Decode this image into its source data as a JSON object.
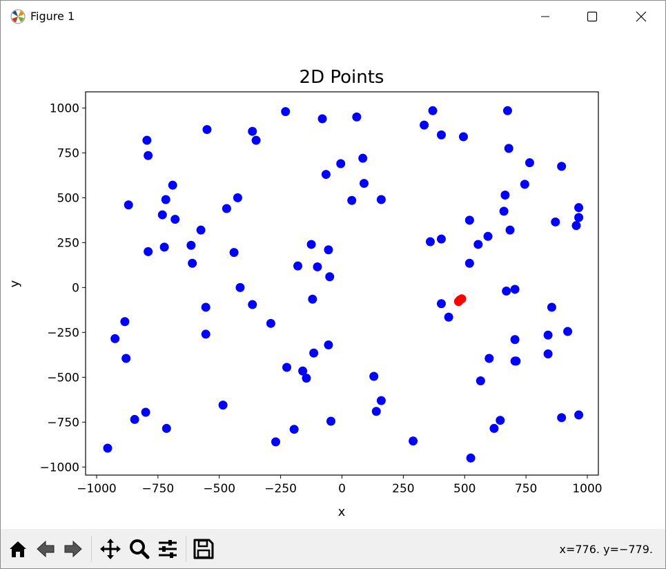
{
  "window": {
    "title": "Figure 1"
  },
  "status": {
    "coords": "x=776. y=−779."
  },
  "toolbar": {
    "items": [
      {
        "icon": "home-icon"
      },
      {
        "icon": "back-arrow-icon"
      },
      {
        "icon": "forward-arrow-icon"
      },
      {
        "icon": "pan-move-icon"
      },
      {
        "icon": "zoom-magnifier-icon"
      },
      {
        "icon": "configure-subplots-icon"
      },
      {
        "icon": "save-disk-icon"
      }
    ]
  },
  "colors": {
    "blue": "#0000ff",
    "red": "#ff0000"
  },
  "chart_data": {
    "type": "scatter",
    "title": "2D Points",
    "xlabel": "x",
    "ylabel": "y",
    "xlim": [
      -1045,
      1045
    ],
    "ylim": [
      -1045,
      1090
    ],
    "xticks": [
      -1000,
      -750,
      -500,
      -250,
      0,
      250,
      500,
      750,
      1000
    ],
    "yticks": [
      -1000,
      -750,
      -500,
      -250,
      0,
      250,
      500,
      750,
      1000
    ],
    "xtick_labels": [
      "−1000",
      "−750",
      "−500",
      "−250",
      "0",
      "250",
      "500",
      "750",
      "1000"
    ],
    "ytick_labels": [
      "−1000",
      "−750",
      "−500",
      "−250",
      "0",
      "250",
      "500",
      "750",
      "1000"
    ],
    "grid": false,
    "series": [
      {
        "color": "blue",
        "x": [
          -795,
          -790,
          -870,
          -690,
          -718,
          -732,
          -680,
          -790,
          -724,
          -575,
          -615,
          -610,
          -550,
          -470,
          -425,
          -440,
          -365,
          -350,
          -230,
          -80,
          -5,
          -65,
          -125,
          -55,
          -180,
          -100,
          -50,
          -415,
          -120,
          -365,
          -555,
          -290,
          -555,
          -225,
          -160,
          -145,
          -115,
          -55,
          -485,
          -195,
          -270,
          -45,
          -885,
          -925,
          -880,
          -800,
          -845,
          -715,
          -955,
          60,
          85,
          90,
          40,
          160,
          335,
          370,
          405,
          495,
          675,
          680,
          765,
          895,
          520,
          405,
          360,
          555,
          595,
          685,
          665,
          660,
          745,
          870,
          955,
          965,
          965,
          520,
          705,
          670,
          405,
          435,
          855,
          840,
          705,
          920,
          840,
          600,
          710,
          565,
          705,
          645,
          620,
          525,
          895,
          965,
          290,
          160,
          130,
          140
        ],
        "y": [
          820,
          735,
          460,
          570,
          490,
          405,
          380,
          200,
          225,
          320,
          235,
          135,
          880,
          440,
          500,
          195,
          870,
          820,
          980,
          940,
          690,
          630,
          240,
          210,
          120,
          115,
          60,
          0,
          -65,
          -95,
          -110,
          -200,
          -260,
          -445,
          -465,
          -505,
          -365,
          -320,
          -655,
          -790,
          -860,
          -745,
          -190,
          -285,
          -395,
          -695,
          -735,
          -785,
          -895,
          950,
          720,
          580,
          485,
          490,
          905,
          985,
          850,
          840,
          985,
          775,
          695,
          675,
          375,
          270,
          255,
          240,
          285,
          320,
          515,
          425,
          575,
          365,
          345,
          445,
          390,
          135,
          -10,
          -20,
          -90,
          -165,
          -110,
          -265,
          -290,
          -245,
          -370,
          -395,
          -410,
          -520,
          -410,
          -740,
          -785,
          -950,
          -725,
          -710,
          -855,
          -630,
          -495,
          -690
        ]
      },
      {
        "color": "red",
        "x": [
          480,
          488,
          475
        ],
        "y": [
          -70,
          -63,
          -78
        ]
      }
    ]
  }
}
